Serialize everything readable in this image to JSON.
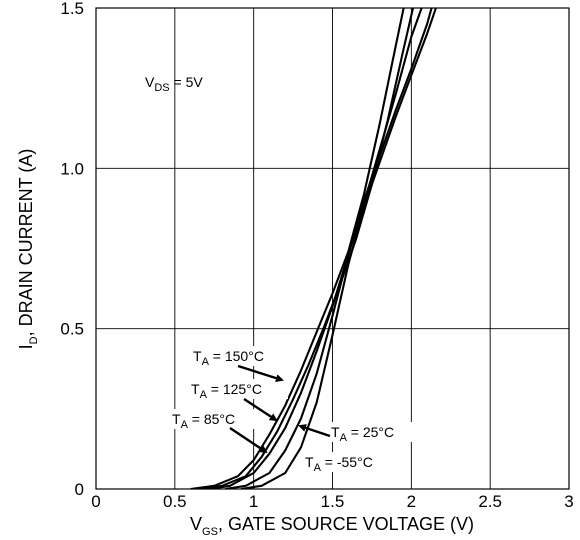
{
  "chart_data": {
    "type": "line",
    "xlabel": {
      "main": "V",
      "sub": "GS",
      "rest": ", GATE SOURCE VOLTAGE (V)"
    },
    "ylabel": {
      "main": "I",
      "sub": "D",
      "rest": ", DRAIN CURRENT (A)"
    },
    "xlim": [
      0,
      3
    ],
    "ylim": [
      0,
      1.5
    ],
    "x_ticks": [
      0,
      0.5,
      1,
      1.5,
      2,
      2.5,
      3
    ],
    "x_tick_labels": [
      "0",
      "0.5",
      "1",
      "1.5",
      "2",
      "2.5",
      "3"
    ],
    "y_ticks": [
      0,
      0.5,
      1.0,
      1.5
    ],
    "y_tick_labels": [
      "0",
      "0.5",
      "1.0",
      "1.5"
    ],
    "grid": true,
    "condition": {
      "main": "V",
      "sub": "DS",
      "rest": " = 5V"
    },
    "series": [
      {
        "name": "T_A = 150°C",
        "x": [
          0.6,
          0.75,
          0.9,
          1.0,
          1.1,
          1.2,
          1.3,
          1.4,
          1.5,
          1.6,
          1.7,
          1.8,
          1.9,
          1.96
        ],
        "y": [
          0.0,
          0.01,
          0.04,
          0.09,
          0.17,
          0.26,
          0.37,
          0.49,
          0.61,
          0.74,
          0.92,
          1.14,
          1.38,
          1.52
        ]
      },
      {
        "name": "T_A = 125°C",
        "x": [
          0.65,
          0.8,
          0.95,
          1.05,
          1.15,
          1.25,
          1.35,
          1.45,
          1.55,
          1.65,
          1.75,
          1.85,
          1.95,
          2.02
        ],
        "y": [
          0.0,
          0.01,
          0.04,
          0.1,
          0.18,
          0.28,
          0.39,
          0.51,
          0.64,
          0.78,
          0.95,
          1.15,
          1.37,
          1.52
        ]
      },
      {
        "name": "T_A = 85°C",
        "x": [
          0.72,
          0.85,
          1.0,
          1.1,
          1.2,
          1.3,
          1.4,
          1.5,
          1.6,
          1.7,
          1.8,
          1.9,
          2.0,
          2.08
        ],
        "y": [
          0.0,
          0.01,
          0.05,
          0.11,
          0.19,
          0.3,
          0.43,
          0.57,
          0.73,
          0.89,
          1.06,
          1.23,
          1.41,
          1.52
        ]
      },
      {
        "name": "T_A = 25°C",
        "x": [
          0.82,
          0.95,
          1.1,
          1.2,
          1.3,
          1.4,
          1.5,
          1.6,
          1.7,
          1.8,
          1.9,
          2.0,
          2.1,
          2.14
        ],
        "y": [
          0.0,
          0.01,
          0.05,
          0.12,
          0.22,
          0.36,
          0.54,
          0.73,
          0.9,
          1.04,
          1.18,
          1.31,
          1.45,
          1.52
        ]
      },
      {
        "name": "T_A = -55°C",
        "x": [
          0.92,
          1.05,
          1.2,
          1.3,
          1.4,
          1.5,
          1.6,
          1.7,
          1.8,
          1.9,
          2.0,
          2.1,
          2.17
        ],
        "y": [
          0.0,
          0.01,
          0.05,
          0.13,
          0.27,
          0.48,
          0.7,
          0.88,
          1.02,
          1.16,
          1.29,
          1.42,
          1.52
        ]
      }
    ],
    "annotations": [
      {
        "main": "T",
        "sub": "A",
        "rest": " = 150°C"
      },
      {
        "main": "T",
        "sub": "A",
        "rest": " = 125°C"
      },
      {
        "main": "T",
        "sub": "A",
        "rest": " = 85°C"
      },
      {
        "main": "T",
        "sub": "A",
        "rest": " = 25°C"
      },
      {
        "main": "T",
        "sub": "A",
        "rest": " = -55°C"
      }
    ]
  }
}
